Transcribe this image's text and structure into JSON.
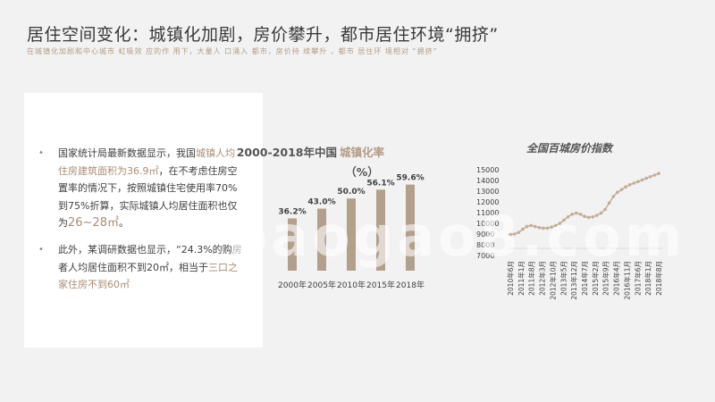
{
  "header": {
    "title": "居住空间变化：城镇化加剧，房价攀升，都市居住环境“拥挤”",
    "subtitle": "在城镇化加剧和中心城市 虹吸效 应的作 用下，大量人 口涌入 都市，房价持 续攀升 ，都市 居住环 境相对 “拥挤”"
  },
  "bullets": [
    {
      "parts": [
        {
          "t": "国家统计局最新数据显示，我国",
          "hl": false
        },
        {
          "t": "城镇人均住房建筑面积为36.9㎡",
          "hl": true
        },
        {
          "t": "，在不考虑住房空置率的情况下，按照城镇住宅使用率70%到75%折算，实际城镇人均居住面积也仅为",
          "hl": false
        },
        {
          "t": "26~28㎡",
          "hl": true,
          "big": true
        },
        {
          "t": "。",
          "hl": false
        }
      ]
    },
    {
      "parts": [
        {
          "t": "此外，某调研数据也显示，“24.3%的购房者人均居住面积不到20㎡，相当于",
          "hl": false
        },
        {
          "t": "三口之家住房不到60㎡",
          "hl": true
        }
      ]
    }
  ],
  "watermark": "baogao8.com",
  "chart_data": [
    {
      "type": "bar",
      "title_part1": "2000-2018年中国",
      "title_part2": "城镇化率",
      "title_unit": "（%）",
      "categories": [
        "2000年",
        "2005年",
        "2010年",
        "2015年",
        "2018年"
      ],
      "values": [
        36.2,
        43.0,
        50.0,
        56.1,
        59.6
      ],
      "value_labels": [
        "36.2%",
        "43.0%",
        "50.0%",
        "56.1%",
        "59.6%"
      ],
      "color": "#b3a08c",
      "ylim": [
        0,
        60
      ]
    },
    {
      "type": "line",
      "title": "全国百城房价指数",
      "yticks": [
        7000,
        8000,
        9000,
        10000,
        11000,
        12000,
        13000,
        14000,
        15000
      ],
      "ylim": [
        7000,
        15000
      ],
      "xticks": [
        "2010年6月",
        "2011年1月",
        "2011年8月",
        "2012年3月",
        "2012年10月",
        "2013年5月",
        "2013年12月",
        "2014年7月",
        "2015年2月",
        "2015年9月",
        "2016年4月",
        "2016年11月",
        "2017年6月",
        "2018年1月",
        "2018年8月"
      ],
      "values": [
        8950,
        9000,
        9150,
        9450,
        9700,
        9800,
        9700,
        9600,
        9550,
        9550,
        9650,
        9800,
        10000,
        10300,
        10600,
        10850,
        10950,
        10850,
        10650,
        10550,
        10600,
        10750,
        10950,
        11300,
        11900,
        12500,
        12900,
        13150,
        13400,
        13600,
        13750,
        13900,
        14050,
        14200,
        14350,
        14500,
        14650
      ],
      "color": "#c4ae98",
      "grid": false
    }
  ]
}
